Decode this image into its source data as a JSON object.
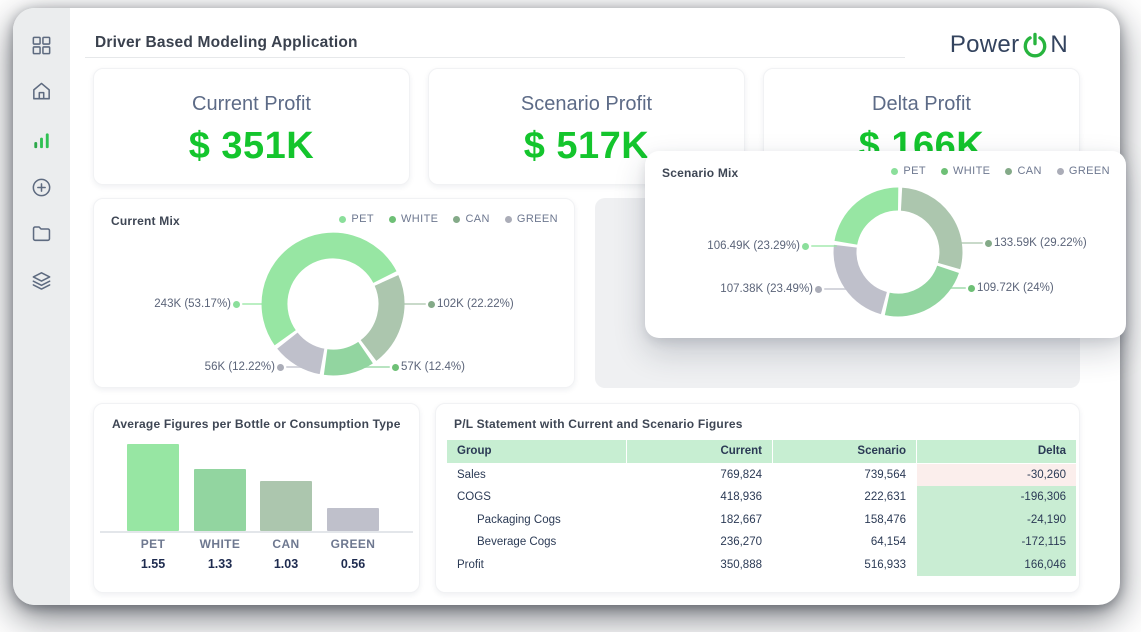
{
  "header": {
    "title": "Driver Based Modeling Application",
    "logo_pre": "Power",
    "logo_post": "N"
  },
  "sidebar": {
    "items": [
      {
        "icon": "grid",
        "active": false
      },
      {
        "icon": "home",
        "active": false
      },
      {
        "icon": "bar-chart",
        "active": true
      },
      {
        "icon": "plus-circle",
        "active": false
      },
      {
        "icon": "folder",
        "active": false
      },
      {
        "icon": "layers",
        "active": false
      }
    ]
  },
  "kpis": [
    {
      "label": "Current Profit",
      "value": "$ 351K"
    },
    {
      "label": "Scenario Profit",
      "value": "$ 517K"
    },
    {
      "label": "Delta Profit",
      "value": "$ 166K"
    }
  ],
  "colors": {
    "accent_green": "#14C52D",
    "table_header_bg": "#C7EED2",
    "delta_positive_bg": "#C9EDD3",
    "delta_negative_bg": "#FBEEEC",
    "categories": {
      "PET": {
        "dot": "#8BDF9B",
        "segment": "#97E6A3"
      },
      "WHITE": {
        "dot": "#6EC076",
        "segment": "#92D5A0"
      },
      "CAN": {
        "dot": "#84AA88",
        "segment": "#ACC6AE"
      },
      "GREEN": {
        "dot": "#ABADB8",
        "segment": "#BFC0CB"
      }
    }
  },
  "chart_data": [
    {
      "id": "current-mix",
      "type": "pie",
      "title": "Current Mix",
      "legend": [
        "PET",
        "WHITE",
        "CAN",
        "GREEN"
      ],
      "legend_position": "top-right",
      "segments": [
        {
          "category": "PET",
          "value_k": 243,
          "pct": 53.17,
          "label": "243K (53.17%)"
        },
        {
          "category": "CAN",
          "value_k": 102,
          "pct": 22.22,
          "label": "102K (22.22%)"
        },
        {
          "category": "WHITE",
          "value_k": 57,
          "pct": 12.4,
          "label": "57K (12.4%)"
        },
        {
          "category": "GREEN",
          "value_k": 56,
          "pct": 12.22,
          "label": "56K (12.22%)"
        }
      ]
    },
    {
      "id": "scenario-mix",
      "type": "pie",
      "title": "Scenario Mix",
      "legend": [
        "PET",
        "WHITE",
        "CAN",
        "GREEN"
      ],
      "legend_position": "top-right",
      "segments": [
        {
          "category": "CAN",
          "value_k": 133.59,
          "pct": 29.22,
          "label": "133.59K (29.22%)"
        },
        {
          "category": "WHITE",
          "value_k": 109.72,
          "pct": 24,
          "label": "109.72K (24%)"
        },
        {
          "category": "GREEN",
          "value_k": 107.38,
          "pct": 23.49,
          "label": "107.38K (23.49%)"
        },
        {
          "category": "PET",
          "value_k": 106.49,
          "pct": 23.29,
          "label": "106.49K (23.29%)"
        }
      ]
    },
    {
      "id": "avg-figures",
      "type": "bar",
      "title": "Average Figures per Bottle or Consumption Type",
      "categories": [
        "PET",
        "WHITE",
        "CAN",
        "GREEN"
      ],
      "values": [
        1.55,
        1.33,
        1.03,
        0.56
      ],
      "value_labels": [
        "1.55",
        "1.33",
        "1.03",
        "0.56"
      ],
      "grid": false
    },
    {
      "id": "pl-table",
      "type": "table",
      "title": "P/L Statement with Current and Scenario Figures",
      "columns": [
        "Group",
        "Current",
        "Scenario",
        "Delta"
      ],
      "rows": [
        {
          "group": "Sales",
          "indent": false,
          "current": "769,824",
          "scenario": "739,564",
          "delta": "-30,260",
          "delta_tone": "bad"
        },
        {
          "group": "COGS",
          "indent": false,
          "current": "418,936",
          "scenario": "222,631",
          "delta": "-196,306",
          "delta_tone": "good"
        },
        {
          "group": "Packaging Cogs",
          "indent": true,
          "current": "182,667",
          "scenario": "158,476",
          "delta": "-24,190",
          "delta_tone": "good"
        },
        {
          "group": "Beverage Cogs",
          "indent": true,
          "current": "236,270",
          "scenario": "64,154",
          "delta": "-172,115",
          "delta_tone": "good"
        },
        {
          "group": "Profit",
          "indent": false,
          "current": "350,888",
          "scenario": "516,933",
          "delta": "166,046",
          "delta_tone": "good"
        }
      ]
    }
  ]
}
